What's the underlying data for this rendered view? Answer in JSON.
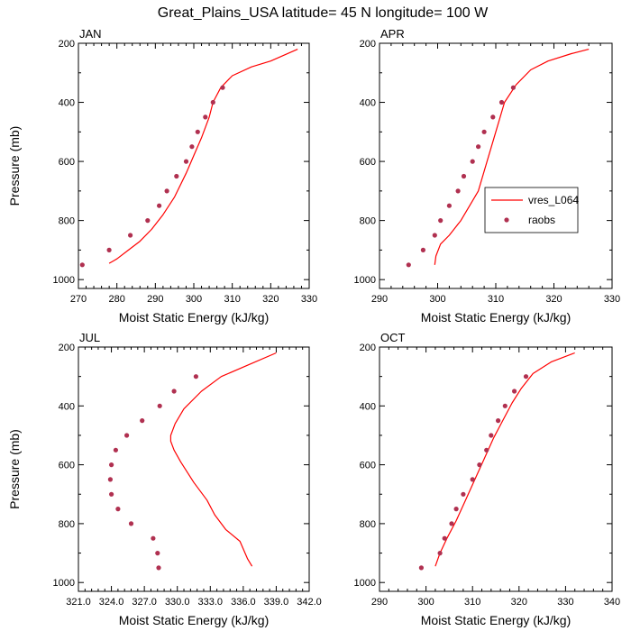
{
  "figure": {
    "title": "Great_Plains_USA  latitude= 45 N longitude= 100 W"
  },
  "legend": {
    "model_label": "vres_L064",
    "obs_label": "raobs"
  },
  "colors": {
    "model_line": "#ff0000",
    "obs_marker": "#b03050"
  },
  "chart_data": [
    {
      "type": "line",
      "panel_label": "JAN",
      "xlabel": "Moist Static Energy (kJ/kg)",
      "ylabel": "Pressure (mb)",
      "xlim": [
        270,
        330
      ],
      "ylim": [
        1030,
        200
      ],
      "xticks": [
        270,
        280,
        290,
        300,
        310,
        320,
        330
      ],
      "xtick_labels": [
        "270",
        "280",
        "290",
        "300",
        "310",
        "320",
        "330"
      ],
      "yticks": [
        200,
        400,
        600,
        800,
        1000
      ],
      "ytick_labels": [
        "200",
        "400",
        "600",
        "800",
        "1000"
      ],
      "series": [
        {
          "kind": "line",
          "x": [
            278,
            280,
            283,
            286,
            289,
            292,
            295,
            298,
            300,
            302,
            304,
            305,
            307,
            310,
            315,
            320,
            327
          ],
          "y": [
            945,
            930,
            900,
            870,
            830,
            780,
            720,
            640,
            580,
            520,
            450,
            400,
            350,
            310,
            280,
            260,
            220
          ]
        },
        {
          "kind": "scatter",
          "x": [
            271,
            278,
            283.5,
            288,
            291,
            293,
            295.5,
            298,
            299.5,
            301,
            303,
            305,
            307.5
          ],
          "y": [
            950,
            900,
            850,
            800,
            750,
            700,
            650,
            600,
            550,
            500,
            450,
            400,
            350
          ]
        }
      ]
    },
    {
      "type": "line",
      "panel_label": "APR",
      "xlabel": "Moist Static Energy (kJ/kg)",
      "ylabel": "",
      "xlim": [
        290,
        330
      ],
      "ylim": [
        1030,
        200
      ],
      "xticks": [
        290,
        300,
        310,
        320,
        330
      ],
      "xtick_labels": [
        "290",
        "300",
        "310",
        "320",
        "330"
      ],
      "yticks": [
        200,
        400,
        600,
        800,
        1000
      ],
      "ytick_labels": [
        "200",
        "400",
        "600",
        "800",
        "1000"
      ],
      "series": [
        {
          "kind": "line",
          "x": [
            299.5,
            299.7,
            300.5,
            302,
            304,
            305.5,
            307,
            308.5,
            310,
            311.5,
            313.5,
            316,
            319,
            323,
            326
          ],
          "y": [
            950,
            920,
            880,
            850,
            800,
            750,
            700,
            600,
            500,
            400,
            340,
            290,
            260,
            235,
            220
          ]
        },
        {
          "kind": "scatter",
          "x": [
            295,
            297.5,
            299.5,
            300.5,
            302,
            303.5,
            304.5,
            306,
            307,
            308,
            309.5,
            311,
            313
          ],
          "y": [
            950,
            900,
            850,
            800,
            750,
            700,
            650,
            600,
            550,
            500,
            450,
            400,
            350
          ]
        }
      ]
    },
    {
      "type": "line",
      "panel_label": "JUL",
      "xlabel": "Moist Static Energy (kJ/kg)",
      "ylabel": "Pressure (mb)",
      "xlim": [
        321,
        342
      ],
      "ylim": [
        1030,
        200
      ],
      "xticks": [
        321,
        324,
        327,
        330,
        333,
        336,
        339,
        342
      ],
      "xtick_labels": [
        "321.0",
        "324.0",
        "327.0",
        "330.0",
        "333.0",
        "336.0",
        "339.0",
        "342.0"
      ],
      "yticks": [
        200,
        400,
        600,
        800,
        1000
      ],
      "ytick_labels": [
        "200",
        "400",
        "600",
        "800",
        "1000"
      ],
      "series": [
        {
          "kind": "line",
          "x": [
            336.8,
            336.4,
            335.7,
            334.4,
            333.4,
            332.7,
            331.5,
            330.3,
            329.7,
            329.4,
            329.4,
            329.8,
            330.6,
            332.2,
            334,
            336.5,
            339
          ],
          "y": [
            945,
            920,
            860,
            820,
            770,
            720,
            660,
            590,
            550,
            520,
            500,
            460,
            410,
            350,
            300,
            260,
            220
          ]
        },
        {
          "kind": "scatter",
          "x": [
            328.3,
            328.2,
            327.8,
            325.8,
            324.6,
            324,
            323.9,
            324,
            324.4,
            325.4,
            326.8,
            328.4,
            329.7,
            331.7
          ],
          "y": [
            950,
            900,
            850,
            800,
            750,
            700,
            650,
            600,
            550,
            500,
            450,
            400,
            350,
            300
          ]
        }
      ]
    },
    {
      "type": "line",
      "panel_label": "OCT",
      "xlabel": "Moist Static Energy (kJ/kg)",
      "ylabel": "",
      "xlim": [
        290,
        340
      ],
      "ylim": [
        1030,
        200
      ],
      "xticks": [
        290,
        300,
        310,
        320,
        330,
        340
      ],
      "xtick_labels": [
        "290",
        "300",
        "310",
        "320",
        "330",
        "340"
      ],
      "yticks": [
        200,
        400,
        600,
        800,
        1000
      ],
      "ytick_labels": [
        "200",
        "400",
        "600",
        "800",
        "1000"
      ],
      "series": [
        {
          "kind": "line",
          "x": [
            302,
            303,
            304.5,
            306.5,
            308.5,
            310.5,
            312.5,
            314.5,
            316.5,
            318.5,
            320.5,
            323,
            327,
            332
          ],
          "y": [
            945,
            900,
            850,
            790,
            720,
            650,
            580,
            510,
            450,
            390,
            340,
            290,
            250,
            220
          ]
        },
        {
          "kind": "scatter",
          "x": [
            299,
            303,
            304,
            305.5,
            306.5,
            308,
            310,
            311.5,
            313,
            314,
            315.5,
            317,
            319,
            321.5
          ],
          "y": [
            950,
            900,
            850,
            800,
            750,
            700,
            650,
            600,
            550,
            500,
            450,
            400,
            350,
            300
          ]
        }
      ]
    }
  ]
}
